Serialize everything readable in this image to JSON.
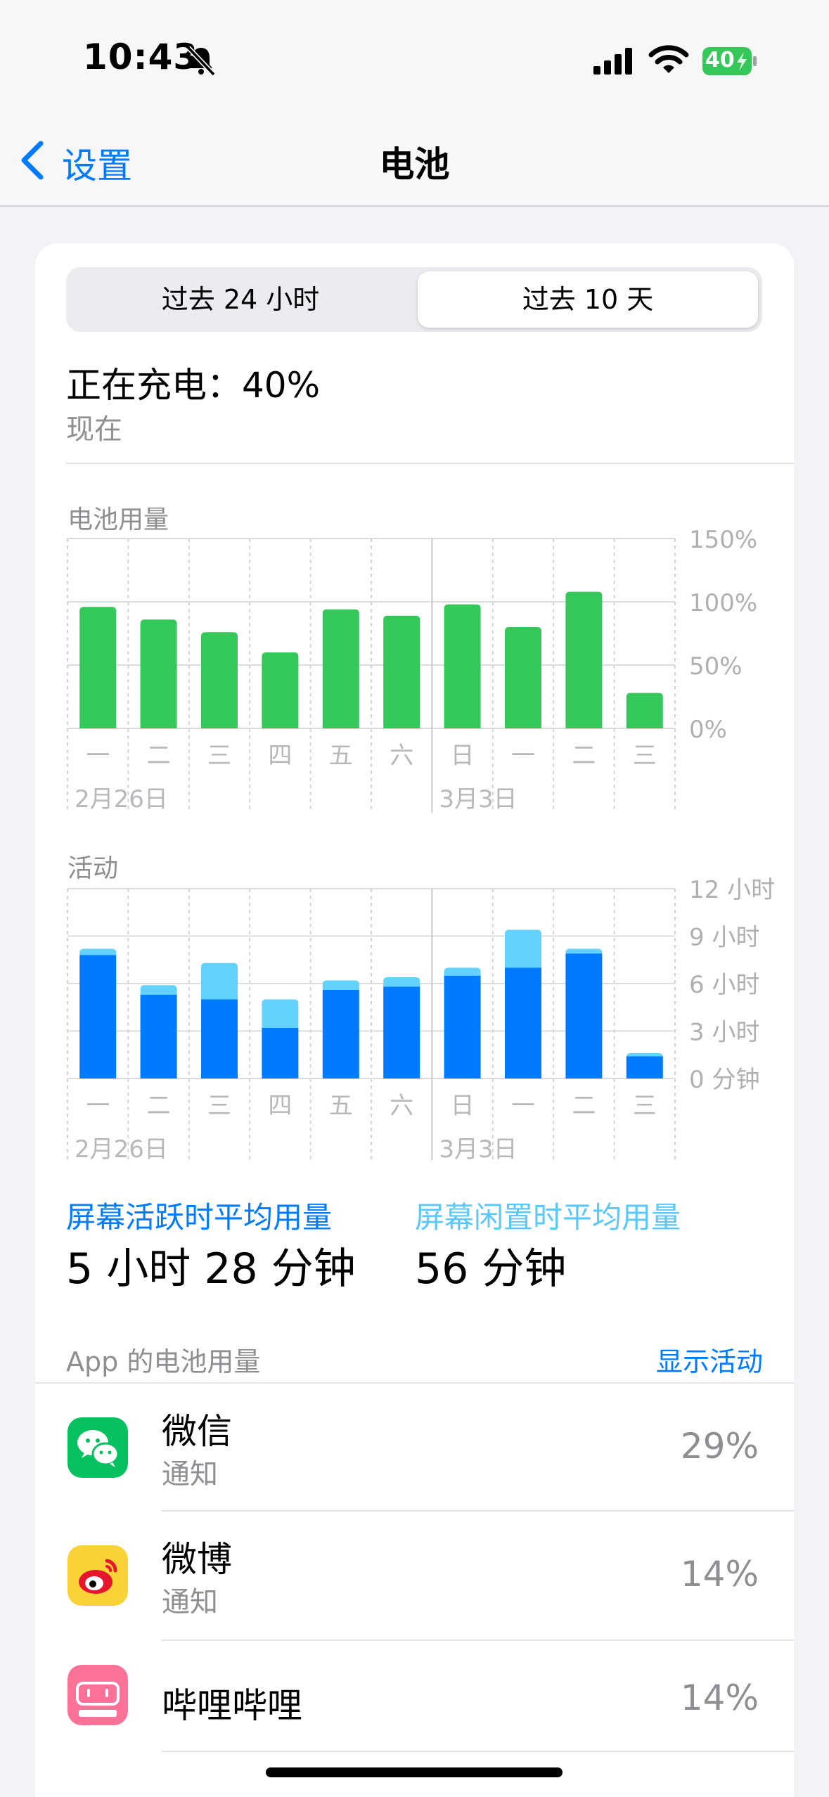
{
  "status": {
    "time": "10:43",
    "battery_level": "40"
  },
  "nav": {
    "back_label": "设置",
    "title": "电池"
  },
  "segments": {
    "left": "过去 24 小时",
    "right": "过去 10 天"
  },
  "charging": {
    "text": "正在充电：40%",
    "sub": "现在"
  },
  "colors": {
    "accent": "#007aff",
    "battery_bar": "#34c759",
    "active_bar": "#007aff",
    "idle_bar": "#64d2ff"
  },
  "chart_data": [
    {
      "type": "bar",
      "title": "电池用量",
      "categories": [
        "一",
        "二",
        "三",
        "四",
        "五",
        "六",
        "日",
        "一",
        "二",
        "三"
      ],
      "values": [
        96,
        86,
        76,
        60,
        94,
        89,
        98,
        80,
        108,
        28
      ],
      "ylim": [
        0,
        150
      ],
      "yticks": [
        "150%",
        "100%",
        "50%",
        "0%"
      ],
      "date_labels": [
        "2月26日",
        "3月3日"
      ],
      "grid": true
    },
    {
      "type": "bar",
      "title": "活动",
      "stacked": true,
      "categories": [
        "一",
        "二",
        "三",
        "四",
        "五",
        "六",
        "日",
        "一",
        "二",
        "三"
      ],
      "series": [
        {
          "values": [
            7.8,
            5.3,
            5.0,
            3.2,
            5.6,
            5.8,
            6.5,
            7.0,
            7.9,
            1.4
          ]
        },
        {
          "values": [
            0.4,
            0.6,
            2.3,
            1.8,
            0.6,
            0.6,
            0.5,
            2.4,
            0.3,
            0.2
          ]
        }
      ],
      "ylim": [
        0,
        12
      ],
      "yticks": [
        "12 小时",
        "9 小时",
        "6 小时",
        "3 小时",
        "0 分钟"
      ],
      "date_labels": [
        "2月26日",
        "3月3日"
      ],
      "grid": true
    }
  ],
  "averages": {
    "active_label": "屏幕活跃时平均用量",
    "active_value": "5 小时 28 分钟",
    "idle_label": "屏幕闲置时平均用量",
    "idle_value": "56 分钟"
  },
  "apps_section": {
    "header": "App 的电池用量",
    "action": "显示活动"
  },
  "apps": [
    {
      "name": "微信",
      "sub": "通知",
      "pct": "29%",
      "icon": "wechat-icon"
    },
    {
      "name": "微博",
      "sub": "通知",
      "pct": "14%",
      "icon": "weibo-icon"
    },
    {
      "name": "哔哩哔哩",
      "sub": "",
      "pct": "14%",
      "icon": "bilibili-icon"
    }
  ]
}
